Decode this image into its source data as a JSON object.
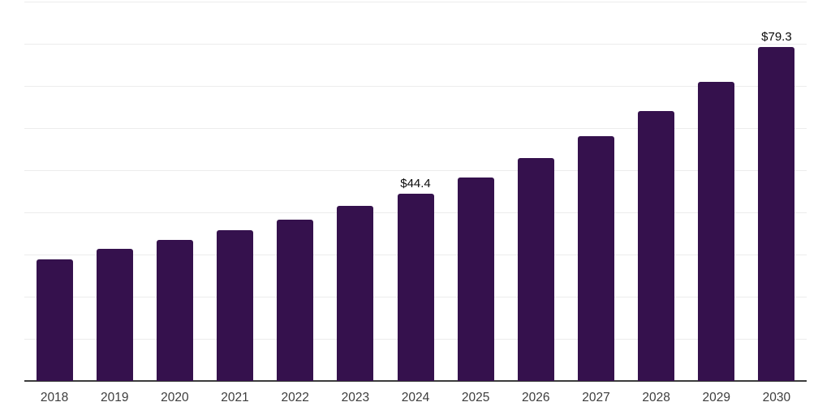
{
  "chart_data": {
    "type": "bar",
    "title": "",
    "xlabel": "",
    "ylabel": "",
    "categories": [
      "2018",
      "2019",
      "2020",
      "2021",
      "2022",
      "2023",
      "2024",
      "2025",
      "2026",
      "2027",
      "2028",
      "2029",
      "2030"
    ],
    "values": [
      28.9,
      31.4,
      33.5,
      35.8,
      38.3,
      41.6,
      44.4,
      48.3,
      52.9,
      58.0,
      64.0,
      70.9,
      79.3
    ],
    "value_labels": {
      "2024": "$44.4",
      "2030": "$79.3"
    },
    "ylim": [
      0,
      90
    ],
    "gridline_step": 10,
    "grid": "horizontal-only",
    "legend_position": "none",
    "y_tick_labels_visible": false,
    "bar_color": "#35114D",
    "axis_line_color": "#3c3c3c",
    "gridline_color": "#ececec",
    "tick_label_color": "#3d3d3d",
    "value_label_color": "#0a0a0a"
  }
}
